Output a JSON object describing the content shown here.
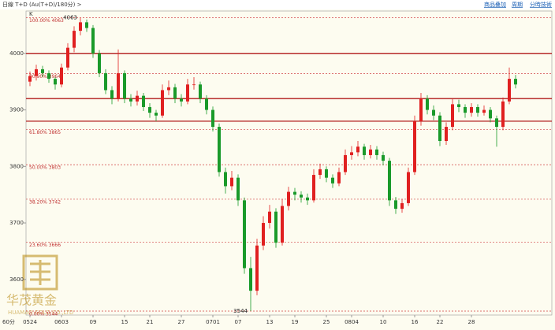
{
  "header": {
    "title": "日線 T+D (Au(T+D)/180分) >",
    "links": [
      "商品叠加",
      "周期",
      "分時技術"
    ]
  },
  "chart_data": {
    "type": "candlestick",
    "axis_label": "K",
    "x_start_label": "60分",
    "ylim": [
      3537,
      4075
    ],
    "yticks": [
      4000,
      3900,
      3800,
      3700,
      3600
    ],
    "xticks": [
      {
        "value": 0,
        "label": "0524"
      },
      {
        "value": 5,
        "label": "0603"
      },
      {
        "value": 10,
        "label": "09"
      },
      {
        "value": 15,
        "label": "15"
      },
      {
        "value": 19,
        "label": "21"
      },
      {
        "value": 24,
        "label": "27"
      },
      {
        "value": 29,
        "label": "0701"
      },
      {
        "value": 33,
        "label": "07"
      },
      {
        "value": 38,
        "label": "13"
      },
      {
        "value": 42,
        "label": "19"
      },
      {
        "value": 47,
        "label": "25"
      },
      {
        "value": 51,
        "label": "0804"
      },
      {
        "value": 56,
        "label": "10"
      },
      {
        "value": 61,
        "label": "16"
      },
      {
        "value": 65,
        "label": "22"
      },
      {
        "value": 70,
        "label": "28"
      }
    ],
    "levels": [
      4000,
      3920,
      3880
    ],
    "fib": [
      {
        "value": 4063,
        "label": "100.00% 4063"
      },
      {
        "value": 3964,
        "label": "80.90% 3964"
      },
      {
        "value": 3865,
        "label": "61.80% 3865"
      },
      {
        "value": 3803,
        "label": "50.00% 3803"
      },
      {
        "value": 3742,
        "label": "38.20% 3742"
      },
      {
        "value": 3666,
        "label": "23.60% 3666"
      },
      {
        "value": 3544,
        "label": "0.00% 3544"
      }
    ],
    "annotations": [
      {
        "index": 8,
        "value": 4063,
        "label": "4063"
      },
      {
        "index": 35,
        "value": 3544,
        "label": "3544"
      }
    ],
    "up_color": "#e02020",
    "down_color": "#1a9a2a",
    "ohlc": [
      [
        3950,
        3968,
        3942,
        3960
      ],
      [
        3960,
        3980,
        3952,
        3972
      ],
      [
        3972,
        3978,
        3958,
        3965
      ],
      [
        3965,
        3970,
        3948,
        3955
      ],
      [
        3955,
        3958,
        3936,
        3945
      ],
      [
        3945,
        3982,
        3940,
        3975
      ],
      [
        3975,
        4018,
        3970,
        4010
      ],
      [
        4010,
        4048,
        4002,
        4040
      ],
      [
        4040,
        4063,
        4032,
        4055
      ],
      [
        4055,
        4060,
        4038,
        4045
      ],
      [
        4045,
        4050,
        3992,
        4000
      ],
      [
        4000,
        4006,
        3958,
        3965
      ],
      [
        3965,
        3972,
        3928,
        3935
      ],
      [
        3935,
        3942,
        3910,
        3920
      ],
      [
        3920,
        4007,
        3915,
        3965
      ],
      [
        3965,
        3970,
        3912,
        3920
      ],
      [
        3920,
        3928,
        3906,
        3915
      ],
      [
        3915,
        3934,
        3908,
        3925
      ],
      [
        3925,
        3930,
        3898,
        3905
      ],
      [
        3905,
        3912,
        3886,
        3895
      ],
      [
        3895,
        3900,
        3880,
        3890
      ],
      [
        3890,
        3945,
        3886,
        3935
      ],
      [
        3935,
        3952,
        3926,
        3940
      ],
      [
        3940,
        3946,
        3912,
        3920
      ],
      [
        3920,
        3928,
        3906,
        3915
      ],
      [
        3915,
        3955,
        3910,
        3945
      ],
      [
        3945,
        3958,
        3936,
        3945
      ],
      [
        3945,
        3950,
        3912,
        3920
      ],
      [
        3920,
        3926,
        3892,
        3900
      ],
      [
        3900,
        3906,
        3862,
        3870
      ],
      [
        3870,
        3876,
        3782,
        3790
      ],
      [
        3790,
        3798,
        3752,
        3765
      ],
      [
        3765,
        3792,
        3758,
        3780
      ],
      [
        3780,
        3786,
        3730,
        3740
      ],
      [
        3740,
        3745,
        3610,
        3620
      ],
      [
        3620,
        3640,
        3544,
        3580
      ],
      [
        3580,
        3672,
        3572,
        3660
      ],
      [
        3660,
        3712,
        3652,
        3700
      ],
      [
        3700,
        3732,
        3690,
        3720
      ],
      [
        3720,
        3726,
        3656,
        3665
      ],
      [
        3665,
        3742,
        3660,
        3730
      ],
      [
        3730,
        3764,
        3722,
        3755
      ],
      [
        3755,
        3762,
        3740,
        3750
      ],
      [
        3750,
        3756,
        3736,
        3745
      ],
      [
        3745,
        3752,
        3732,
        3740
      ],
      [
        3740,
        3795,
        3736,
        3785
      ],
      [
        3785,
        3805,
        3778,
        3795
      ],
      [
        3795,
        3800,
        3772,
        3780
      ],
      [
        3780,
        3786,
        3762,
        3770
      ],
      [
        3770,
        3798,
        3765,
        3790
      ],
      [
        3790,
        3830,
        3785,
        3820
      ],
      [
        3820,
        3836,
        3812,
        3825
      ],
      [
        3825,
        3845,
        3818,
        3835
      ],
      [
        3835,
        3840,
        3812,
        3820
      ],
      [
        3820,
        3838,
        3814,
        3830
      ],
      [
        3830,
        3836,
        3812,
        3820
      ],
      [
        3820,
        3826,
        3802,
        3810
      ],
      [
        3810,
        3815,
        3730,
        3740
      ],
      [
        3740,
        3746,
        3716,
        3725
      ],
      [
        3725,
        3742,
        3718,
        3735
      ],
      [
        3735,
        3798,
        3730,
        3790
      ],
      [
        3790,
        3890,
        3785,
        3880
      ],
      [
        3880,
        3930,
        3872,
        3920
      ],
      [
        3920,
        3926,
        3892,
        3900
      ],
      [
        3900,
        3908,
        3882,
        3890
      ],
      [
        3890,
        3896,
        3836,
        3845
      ],
      [
        3845,
        3878,
        3838,
        3870
      ],
      [
        3870,
        3920,
        3864,
        3910
      ],
      [
        3910,
        3918,
        3896,
        3905
      ],
      [
        3905,
        3910,
        3886,
        3895
      ],
      [
        3895,
        3912,
        3888,
        3905
      ],
      [
        3905,
        3910,
        3888,
        3895
      ],
      [
        3895,
        3908,
        3890,
        3900
      ],
      [
        3900,
        3905,
        3878,
        3885
      ],
      [
        3885,
        3890,
        3835,
        3870
      ],
      [
        3870,
        3922,
        3864,
        3915
      ],
      [
        3915,
        3975,
        3910,
        3955
      ],
      [
        3955,
        3962,
        3938,
        3945
      ]
    ]
  },
  "watermark": {
    "name": "华茂黄金",
    "sub": "HUAMAO GOLD CO.,LTD"
  }
}
